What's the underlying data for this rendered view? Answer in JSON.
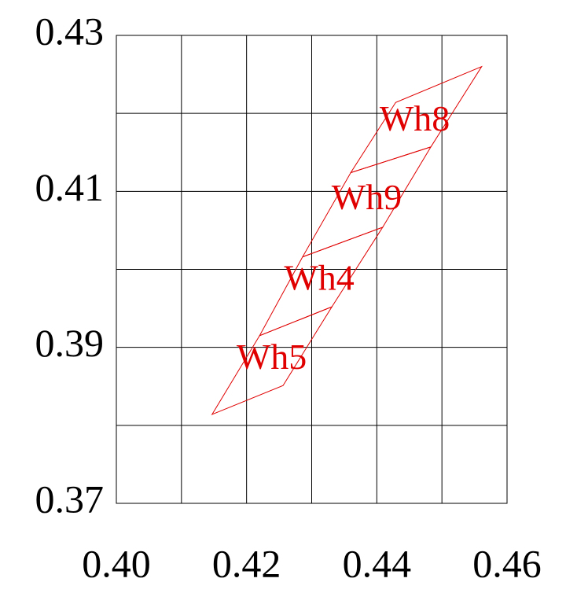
{
  "chart_data": {
    "type": "polygon",
    "xlim": [
      0.4,
      0.46
    ],
    "ylim": [
      0.37,
      0.43
    ],
    "xticks": [
      {
        "value": 0.4,
        "label": "0.40"
      },
      {
        "value": 0.42,
        "label": "0.42"
      },
      {
        "value": 0.44,
        "label": "0.44"
      },
      {
        "value": 0.46,
        "label": "0.46"
      }
    ],
    "x_minor_ticks": [
      0.41,
      0.43,
      0.45
    ],
    "yticks": [
      0.37,
      0.39,
      0.41,
      0.43
    ],
    "y_minor_ticks": [
      0.38,
      0.4,
      0.42
    ],
    "grid": true,
    "series": [
      {
        "name": "Wh5",
        "color": "#e00000",
        "x": [
          0.4147,
          0.4256,
          0.4331,
          0.422
        ],
        "y": [
          0.3814,
          0.3851,
          0.3952,
          0.3915
        ]
      },
      {
        "name": "Wh4",
        "color": "#e00000",
        "x": [
          0.422,
          0.4331,
          0.4409,
          0.4286
        ],
        "y": [
          0.3915,
          0.3952,
          0.4054,
          0.4016
        ]
      },
      {
        "name": "Wh9",
        "color": "#e00000",
        "x": [
          0.4286,
          0.4409,
          0.4483,
          0.436
        ],
        "y": [
          0.4016,
          0.4054,
          0.4157,
          0.4124
        ]
      },
      {
        "name": "Wh8",
        "color": "#e00000",
        "x": [
          0.436,
          0.4483,
          0.4561,
          0.4429
        ],
        "y": [
          0.4124,
          0.4157,
          0.426,
          0.4214
        ]
      }
    ]
  }
}
